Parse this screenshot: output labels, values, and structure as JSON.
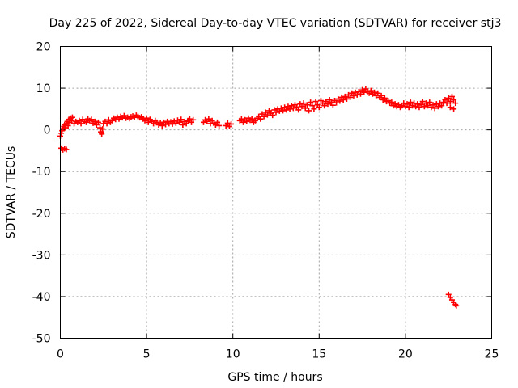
{
  "chart_data": {
    "type": "scatter",
    "title": "Day 225 of 2022, Sidereal Day-to-day VTEC variation (SDTVAR) for receiver stj3",
    "xlabel": "GPS time / hours",
    "ylabel": "SDTVAR / TECUs",
    "xlim": [
      0,
      25
    ],
    "ylim": [
      -50,
      20
    ],
    "xticks": [
      0,
      5,
      10,
      15,
      20,
      25
    ],
    "yticks": [
      -50,
      -40,
      -30,
      -20,
      -10,
      0,
      10,
      20
    ],
    "grid": true,
    "marker": "+",
    "color": "#ff0000",
    "series": [
      {
        "name": "SDTVAR",
        "points": [
          [
            0.0,
            -1.5
          ],
          [
            0.05,
            -0.8
          ],
          [
            0.1,
            -0.2
          ],
          [
            0.15,
            0.3
          ],
          [
            0.2,
            0.8
          ],
          [
            0.25,
            1.2
          ],
          [
            0.3,
            0.5
          ],
          [
            0.35,
            1.5
          ],
          [
            0.4,
            2.0
          ],
          [
            0.45,
            1.0
          ],
          [
            0.5,
            2.5
          ],
          [
            0.55,
            1.8
          ],
          [
            0.6,
            2.8
          ],
          [
            0.65,
            2.2
          ],
          [
            0.7,
            3.0
          ],
          [
            0.8,
            1.5
          ],
          [
            0.9,
            2.0
          ],
          [
            1.0,
            1.8
          ],
          [
            1.1,
            2.2
          ],
          [
            1.2,
            1.5
          ],
          [
            1.3,
            2.5
          ],
          [
            1.4,
            2.0
          ],
          [
            1.5,
            1.8
          ],
          [
            1.6,
            2.6
          ],
          [
            1.7,
            2.2
          ],
          [
            1.8,
            2.5
          ],
          [
            1.9,
            1.6
          ],
          [
            2.0,
            2.0
          ],
          [
            2.1,
            1.2
          ],
          [
            2.2,
            1.8
          ],
          [
            2.3,
            0.5
          ],
          [
            2.35,
            -0.5
          ],
          [
            2.4,
            -1.0
          ],
          [
            2.45,
            0.2
          ],
          [
            2.5,
            1.5
          ],
          [
            2.6,
            2.0
          ],
          [
            2.7,
            1.5
          ],
          [
            2.8,
            2.4
          ],
          [
            2.9,
            1.8
          ],
          [
            3.0,
            2.2
          ],
          [
            3.1,
            2.8
          ],
          [
            3.2,
            2.5
          ],
          [
            3.3,
            3.0
          ],
          [
            3.4,
            2.6
          ],
          [
            3.5,
            3.2
          ],
          [
            3.6,
            2.9
          ],
          [
            3.7,
            3.4
          ],
          [
            3.8,
            2.8
          ],
          [
            3.9,
            3.0
          ],
          [
            4.0,
            2.7
          ],
          [
            4.1,
            3.1
          ],
          [
            4.2,
            3.3
          ],
          [
            4.3,
            3.0
          ],
          [
            4.4,
            3.5
          ],
          [
            4.5,
            3.2
          ],
          [
            4.6,
            2.9
          ],
          [
            4.7,
            3.1
          ],
          [
            4.8,
            2.6
          ],
          [
            4.9,
            2.2
          ],
          [
            5.0,
            2.8
          ],
          [
            5.1,
            1.8
          ],
          [
            5.2,
            2.5
          ],
          [
            5.3,
            2.0
          ],
          [
            5.4,
            1.5
          ],
          [
            5.5,
            2.2
          ],
          [
            5.6,
            1.8
          ],
          [
            5.7,
            1.2
          ],
          [
            5.8,
            1.6
          ],
          [
            5.9,
            1.0
          ],
          [
            6.0,
            1.8
          ],
          [
            6.1,
            1.3
          ],
          [
            6.2,
            2.0
          ],
          [
            6.3,
            1.5
          ],
          [
            6.4,
            1.9
          ],
          [
            6.5,
            1.4
          ],
          [
            6.6,
            2.1
          ],
          [
            6.7,
            1.6
          ],
          [
            6.8,
            2.3
          ],
          [
            6.9,
            1.8
          ],
          [
            7.0,
            2.5
          ],
          [
            7.1,
            1.2
          ],
          [
            7.2,
            2.0
          ],
          [
            7.3,
            1.5
          ],
          [
            7.4,
            2.2
          ],
          [
            7.5,
            2.6
          ],
          [
            7.6,
            1.8
          ],
          [
            7.7,
            2.4
          ],
          [
            8.3,
            1.8
          ],
          [
            8.4,
            2.4
          ],
          [
            8.5,
            2.0
          ],
          [
            8.6,
            2.6
          ],
          [
            8.7,
            1.5
          ],
          [
            8.8,
            2.2
          ],
          [
            8.9,
            1.6
          ],
          [
            9.0,
            1.2
          ],
          [
            9.1,
            1.8
          ],
          [
            9.2,
            1.0
          ],
          [
            9.6,
            1.0
          ],
          [
            9.7,
            1.6
          ],
          [
            9.8,
            0.8
          ],
          [
            9.9,
            1.4
          ],
          [
            10.4,
            2.2
          ],
          [
            10.5,
            2.6
          ],
          [
            10.6,
            1.8
          ],
          [
            10.7,
            2.4
          ],
          [
            10.8,
            2.0
          ],
          [
            10.9,
            2.8
          ],
          [
            11.0,
            2.3
          ],
          [
            11.1,
            2.6
          ],
          [
            11.2,
            1.8
          ],
          [
            11.3,
            2.2
          ],
          [
            11.4,
            2.8
          ],
          [
            11.5,
            3.2
          ],
          [
            11.6,
            2.6
          ],
          [
            11.7,
            3.8
          ],
          [
            11.8,
            3.2
          ],
          [
            11.9,
            4.2
          ],
          [
            12.0,
            3.6
          ],
          [
            12.1,
            4.6
          ],
          [
            12.2,
            4.0
          ],
          [
            12.3,
            3.5
          ],
          [
            12.4,
            4.8
          ],
          [
            12.5,
            4.2
          ],
          [
            12.6,
            5.0
          ],
          [
            12.7,
            4.5
          ],
          [
            12.8,
            5.2
          ],
          [
            12.9,
            4.6
          ],
          [
            13.0,
            5.4
          ],
          [
            13.1,
            4.8
          ],
          [
            13.2,
            5.6
          ],
          [
            13.3,
            5.0
          ],
          [
            13.4,
            5.8
          ],
          [
            13.5,
            5.2
          ],
          [
            13.6,
            6.0
          ],
          [
            13.7,
            5.5
          ],
          [
            13.8,
            4.8
          ],
          [
            13.9,
            6.2
          ],
          [
            14.0,
            5.6
          ],
          [
            14.1,
            6.4
          ],
          [
            14.2,
            5.2
          ],
          [
            14.3,
            6.0
          ],
          [
            14.4,
            4.6
          ],
          [
            14.5,
            6.6
          ],
          [
            14.6,
            5.8
          ],
          [
            14.7,
            5.0
          ],
          [
            14.8,
            6.8
          ],
          [
            14.9,
            6.0
          ],
          [
            15.0,
            5.4
          ],
          [
            15.1,
            7.0
          ],
          [
            15.2,
            6.4
          ],
          [
            15.3,
            5.8
          ],
          [
            15.4,
            6.8
          ],
          [
            15.5,
            6.2
          ],
          [
            15.6,
            7.2
          ],
          [
            15.7,
            6.6
          ],
          [
            15.8,
            5.9
          ],
          [
            15.9,
            7.0
          ],
          [
            16.0,
            6.5
          ],
          [
            16.1,
            7.4
          ],
          [
            16.2,
            6.9
          ],
          [
            16.3,
            7.8
          ],
          [
            16.4,
            7.2
          ],
          [
            16.5,
            8.0
          ],
          [
            16.6,
            7.4
          ],
          [
            16.7,
            8.4
          ],
          [
            16.8,
            7.8
          ],
          [
            16.9,
            8.8
          ],
          [
            17.0,
            8.2
          ],
          [
            17.1,
            9.0
          ],
          [
            17.2,
            8.4
          ],
          [
            17.3,
            9.2
          ],
          [
            17.4,
            8.6
          ],
          [
            17.5,
            9.6
          ],
          [
            17.6,
            9.0
          ],
          [
            17.7,
            9.8
          ],
          [
            17.8,
            9.2
          ],
          [
            17.9,
            8.8
          ],
          [
            18.0,
            9.4
          ],
          [
            18.1,
            8.6
          ],
          [
            18.2,
            9.0
          ],
          [
            18.3,
            8.2
          ],
          [
            18.4,
            8.8
          ],
          [
            18.5,
            7.8
          ],
          [
            18.6,
            8.2
          ],
          [
            18.7,
            7.2
          ],
          [
            18.8,
            7.6
          ],
          [
            18.9,
            6.8
          ],
          [
            19.0,
            7.0
          ],
          [
            19.1,
            6.4
          ],
          [
            19.2,
            6.6
          ],
          [
            19.3,
            5.8
          ],
          [
            19.4,
            6.2
          ],
          [
            19.5,
            5.6
          ],
          [
            19.6,
            6.0
          ],
          [
            19.7,
            5.4
          ],
          [
            19.8,
            5.8
          ],
          [
            19.9,
            6.4
          ],
          [
            20.0,
            5.6
          ],
          [
            20.1,
            6.2
          ],
          [
            20.2,
            5.4
          ],
          [
            20.3,
            6.6
          ],
          [
            20.4,
            5.8
          ],
          [
            20.5,
            6.4
          ],
          [
            20.6,
            5.6
          ],
          [
            20.7,
            6.2
          ],
          [
            20.8,
            5.4
          ],
          [
            20.9,
            6.0
          ],
          [
            21.0,
            6.8
          ],
          [
            21.1,
            5.6
          ],
          [
            21.2,
            6.4
          ],
          [
            21.3,
            5.8
          ],
          [
            21.4,
            6.6
          ],
          [
            21.5,
            5.4
          ],
          [
            21.6,
            6.0
          ],
          [
            21.7,
            5.2
          ],
          [
            21.8,
            6.2
          ],
          [
            21.9,
            5.6
          ],
          [
            22.0,
            6.4
          ],
          [
            22.1,
            5.8
          ],
          [
            22.2,
            6.6
          ],
          [
            22.3,
            7.2
          ],
          [
            22.4,
            6.4
          ],
          [
            22.5,
            7.6
          ],
          [
            22.6,
            6.8
          ],
          [
            22.7,
            8.0
          ],
          [
            22.8,
            7.2
          ],
          [
            22.9,
            6.4
          ],
          [
            22.6,
            5.4
          ],
          [
            22.8,
            5.0
          ],
          [
            0.05,
            -4.4
          ],
          [
            0.15,
            -4.8
          ],
          [
            0.25,
            -4.5
          ],
          [
            0.35,
            -4.7
          ],
          [
            22.5,
            -39.5
          ],
          [
            22.6,
            -40.2
          ],
          [
            22.7,
            -40.8
          ],
          [
            22.8,
            -41.4
          ],
          [
            22.9,
            -41.9
          ],
          [
            22.95,
            -42.2
          ]
        ]
      }
    ]
  }
}
